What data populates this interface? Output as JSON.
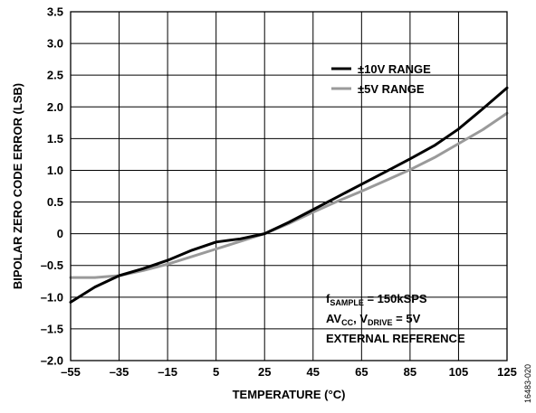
{
  "chart_data": {
    "type": "line",
    "xlabel": "TEMPERATURE (°C)",
    "ylabel": "BIPOLAR ZERO CODE ERROR (LSB)",
    "xlim": [
      -55,
      125
    ],
    "ylim": [
      -2.0,
      3.5
    ],
    "x_ticks": [
      -55,
      -35,
      -15,
      5,
      25,
      45,
      65,
      85,
      105,
      125
    ],
    "x_tick_labels": [
      "–55",
      "–35",
      "–15",
      "5",
      "25",
      "45",
      "65",
      "85",
      "105",
      "125"
    ],
    "y_ticks": [
      3.5,
      3.0,
      2.5,
      2.0,
      1.5,
      1.0,
      0.5,
      0,
      -0.5,
      -1.0,
      -1.5,
      -2.0
    ],
    "y_tick_labels": [
      "3.5",
      "3.0",
      "2.5",
      "2.0",
      "1.5",
      "1.0",
      "0.5",
      "0",
      "–0.5",
      "–1.0",
      "–1.5",
      "–2.0"
    ],
    "grid": true,
    "legend_position": "top-right",
    "series": [
      {
        "name": "±10V RANGE",
        "color": "#000000",
        "x": [
          -55,
          -45,
          -35,
          -25,
          -15,
          -5,
          5,
          15,
          25,
          35,
          45,
          55,
          65,
          75,
          85,
          95,
          105,
          115,
          125
        ],
        "y": [
          -1.08,
          -0.84,
          -0.66,
          -0.55,
          -0.42,
          -0.26,
          -0.13,
          -0.08,
          0.0,
          0.18,
          0.38,
          0.58,
          0.78,
          0.98,
          1.18,
          1.39,
          1.65,
          1.97,
          2.3
        ]
      },
      {
        "name": "±5V RANGE",
        "color": "#9a9a9a",
        "x": [
          -55,
          -45,
          -35,
          -25,
          -15,
          -5,
          5,
          15,
          25,
          35,
          45,
          55,
          65,
          75,
          85,
          95,
          105,
          115,
          125
        ],
        "y": [
          -0.69,
          -0.69,
          -0.66,
          -0.58,
          -0.48,
          -0.36,
          -0.24,
          -0.12,
          0.0,
          0.16,
          0.34,
          0.51,
          0.67,
          0.84,
          1.01,
          1.2,
          1.42,
          1.64,
          1.9
        ]
      }
    ],
    "annotations": {
      "line1_main": "f",
      "line1_sub": "SAMPLE",
      "line1_rest": " = 150kSPS",
      "line2_main": "AV",
      "line2_sub1": "CC",
      "line2_mid": ", V",
      "line2_sub2": "DRIVE",
      "line2_rest": " = 5V",
      "line3": "EXTERNAL REFERENCE"
    },
    "figure_id": "16483-020"
  }
}
